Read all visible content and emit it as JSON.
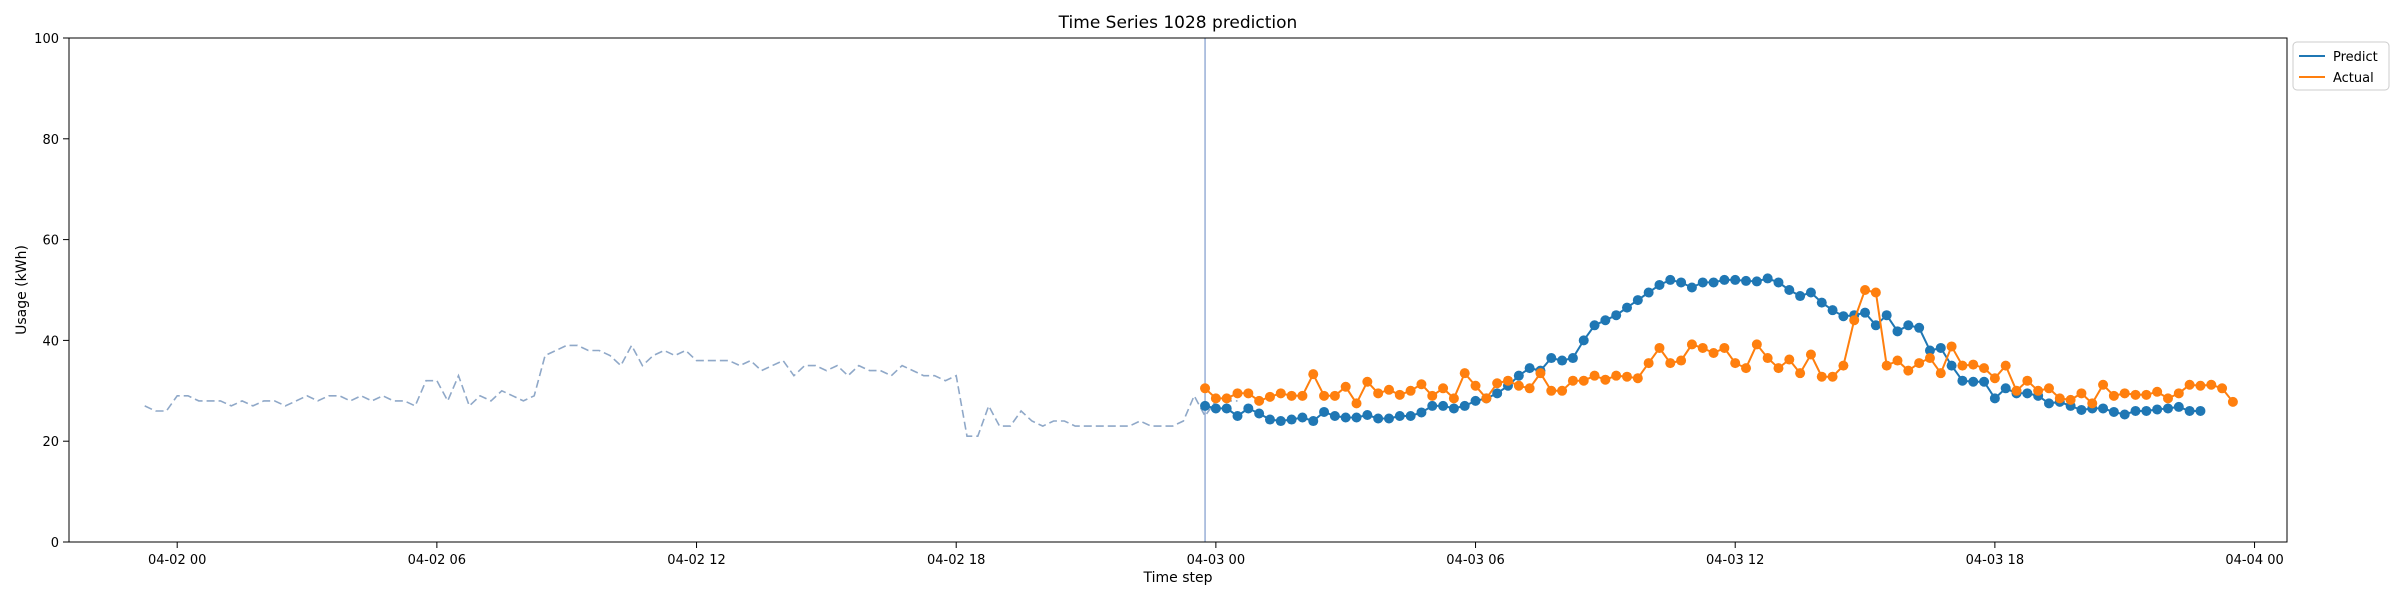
{
  "chart_data": {
    "type": "line",
    "title": "Time Series 1028 prediction",
    "xlabel": "Time step",
    "ylabel": "Usage (kWh)",
    "ylim": [
      0,
      100
    ],
    "yticks": [
      0,
      20,
      40,
      60,
      80,
      100
    ],
    "xlim": [
      "2024-04-01 21:30",
      "2024-04-04 00:45"
    ],
    "xticks": [
      {
        "t": "2024-04-02 00:00",
        "label": "04-02 00"
      },
      {
        "t": "2024-04-02 06:00",
        "label": "04-02 06"
      },
      {
        "t": "2024-04-02 12:00",
        "label": "04-02 12"
      },
      {
        "t": "2024-04-02 18:00",
        "label": "04-02 18"
      },
      {
        "t": "2024-04-03 00:00",
        "label": "04-03 00"
      },
      {
        "t": "2024-04-03 06:00",
        "label": "04-03 06"
      },
      {
        "t": "2024-04-03 12:00",
        "label": "04-03 12"
      },
      {
        "t": "2024-04-03 18:00",
        "label": "04-03 18"
      },
      {
        "t": "2024-04-04 00:00",
        "label": "04-04 00"
      }
    ],
    "interval_minutes": 15,
    "prediction_start": "2024-04-02 23:45",
    "legend_position": "upper right, outside",
    "series": [
      {
        "name": "History",
        "role": "history",
        "color": "#8fa8c8",
        "style": "dashed",
        "start": "2024-04-01 23:15",
        "values": [
          27,
          26,
          26,
          29,
          29,
          28,
          28,
          28,
          27,
          28,
          27,
          28,
          28,
          27,
          28,
          29,
          28,
          29,
          29,
          28,
          29,
          28,
          29,
          28,
          28,
          27,
          32,
          32,
          28,
          33,
          27,
          29,
          28,
          30,
          29,
          28,
          29,
          37,
          38,
          39,
          39,
          38,
          38,
          37,
          35,
          39,
          35,
          37,
          38,
          37,
          38,
          36,
          36,
          36,
          36,
          35,
          36,
          34,
          35,
          36,
          33,
          35,
          35,
          34,
          35,
          33,
          35,
          34,
          34,
          33,
          35,
          34,
          33,
          33,
          32,
          33,
          21,
          21,
          27,
          23,
          23,
          26,
          24,
          23,
          24,
          24,
          23,
          23,
          23,
          23,
          23,
          23,
          24,
          23,
          23,
          23,
          24,
          29,
          25,
          28,
          28,
          28
        ]
      },
      {
        "name": "Predict",
        "role": "prediction",
        "color": "#1f77b4",
        "style": "solid-markers",
        "start": "2024-04-02 23:45",
        "values": [
          27,
          26.5,
          26.5,
          25,
          26.5,
          25.5,
          24.3,
          24,
          24.3,
          24.7,
          24,
          25.8,
          25,
          24.7,
          24.7,
          25.2,
          24.5,
          24.5,
          25,
          25,
          25.7,
          27,
          27,
          26.5,
          27,
          28,
          28.5,
          29.5,
          31,
          33,
          34.5,
          34,
          36.5,
          36,
          36.5,
          40,
          43,
          44,
          45,
          46.5,
          48,
          49.5,
          51,
          52,
          51.5,
          50.5,
          51.5,
          51.5,
          52,
          52,
          51.8,
          51.7,
          52.3,
          51.5,
          50,
          48.8,
          49.5,
          47.5,
          46,
          44.8,
          45,
          45.5,
          43,
          45,
          41.8,
          43,
          42.5,
          38,
          38.5,
          35,
          32,
          31.8,
          31.8,
          28.5,
          30.5,
          29.5,
          29.5,
          29,
          27.5,
          27.8,
          27,
          26.2,
          26.5,
          26.5,
          25.8,
          25.3,
          26,
          26,
          26.3,
          26.5,
          26.8,
          26,
          26
        ]
      },
      {
        "name": "Actual",
        "role": "actual",
        "color": "#ff7f0e",
        "style": "solid-markers",
        "start": "2024-04-02 23:45",
        "values": [
          30.5,
          28.5,
          28.5,
          29.5,
          29.5,
          28,
          28.8,
          29.5,
          29,
          29,
          33.3,
          29,
          29,
          30.8,
          27.5,
          31.8,
          29.5,
          30.2,
          29.2,
          30,
          31.3,
          29,
          30.5,
          28.5,
          33.5,
          31,
          28.5,
          31.5,
          32,
          31,
          30.5,
          33.5,
          30,
          30,
          32,
          32,
          33,
          32.2,
          33,
          32.8,
          32.5,
          35.5,
          38.5,
          35.5,
          36,
          39.2,
          38.5,
          37.5,
          38.5,
          35.5,
          34.5,
          39.2,
          36.5,
          34.5,
          36.2,
          33.5,
          37.2,
          32.8,
          32.8,
          35,
          44,
          50,
          49.5,
          35,
          36,
          34,
          35.5,
          36.5,
          33.5,
          38.8,
          35,
          35.2,
          34.5,
          32.5,
          35,
          30,
          32,
          30,
          30.5,
          28.5,
          28.2,
          29.5,
          27.5,
          31.2,
          29,
          29.5,
          29.2,
          29.2,
          29.8,
          28.5,
          29.5,
          31.2,
          31,
          31.2,
          30.5,
          27.8
        ]
      }
    ]
  }
}
